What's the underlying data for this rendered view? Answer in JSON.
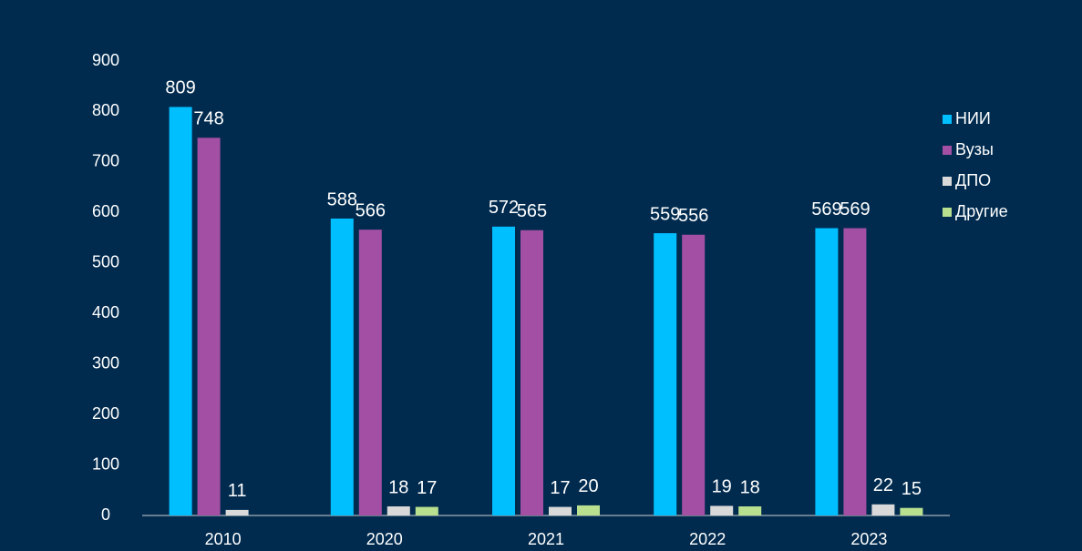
{
  "chart_data": {
    "type": "bar",
    "categories": [
      "2010",
      "2020",
      "2021",
      "2022",
      "2023"
    ],
    "series": [
      {
        "name": "НИИ",
        "color": "#00bfff",
        "values": [
          809,
          588,
          572,
          559,
          569
        ]
      },
      {
        "name": "Вузы",
        "color": "#a34fa3",
        "values": [
          748,
          566,
          565,
          556,
          569
        ]
      },
      {
        "name": "ДПО",
        "color": "#d9d9d9",
        "values": [
          11,
          18,
          17,
          19,
          22
        ]
      },
      {
        "name": "Другие",
        "color": "#b8e08f",
        "values": [
          null,
          17,
          20,
          18,
          15
        ]
      }
    ],
    "ylim": [
      0,
      900
    ],
    "yticks": [
      0,
      100,
      200,
      300,
      400,
      500,
      600,
      700,
      800,
      900
    ],
    "grid": false,
    "legend": "right"
  }
}
